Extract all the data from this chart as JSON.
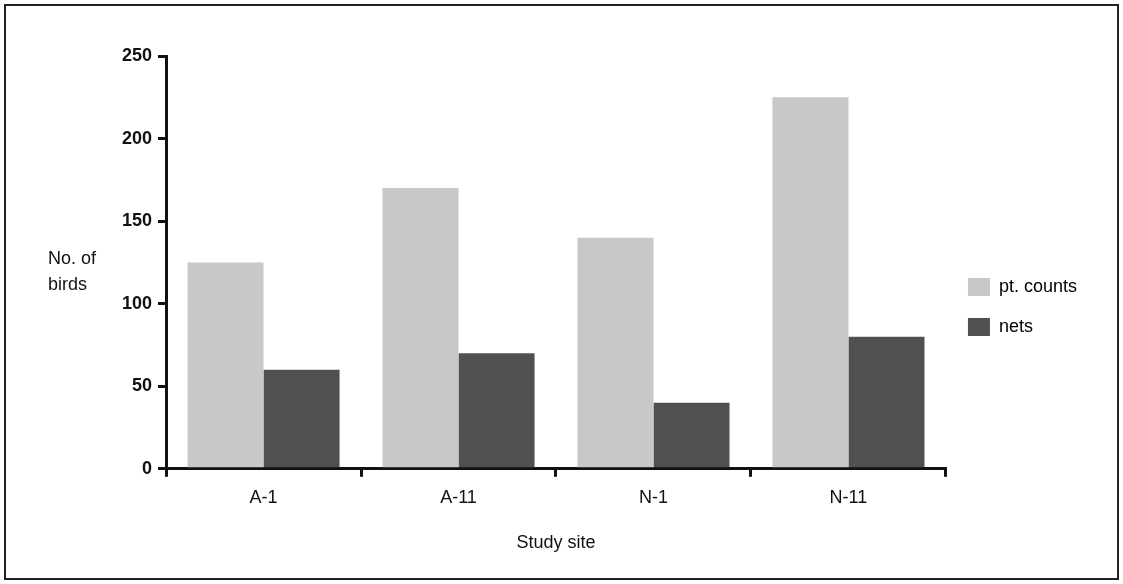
{
  "chart_data": {
    "type": "bar",
    "xlabel": "Study site",
    "ylabel": "No. of birds",
    "categories": [
      "A-1",
      "A-11",
      "N-1",
      "N-11"
    ],
    "series": [
      {
        "name": "pt. counts",
        "color": "#c8c8c8",
        "values": [
          125,
          170,
          140,
          225
        ]
      },
      {
        "name": "nets",
        "color": "#505050",
        "values": [
          60,
          70,
          40,
          80
        ]
      }
    ],
    "ylim": [
      0,
      250
    ],
    "yticks": [
      0,
      50,
      100,
      150,
      200,
      250
    ],
    "grid": false,
    "legend": "right"
  }
}
